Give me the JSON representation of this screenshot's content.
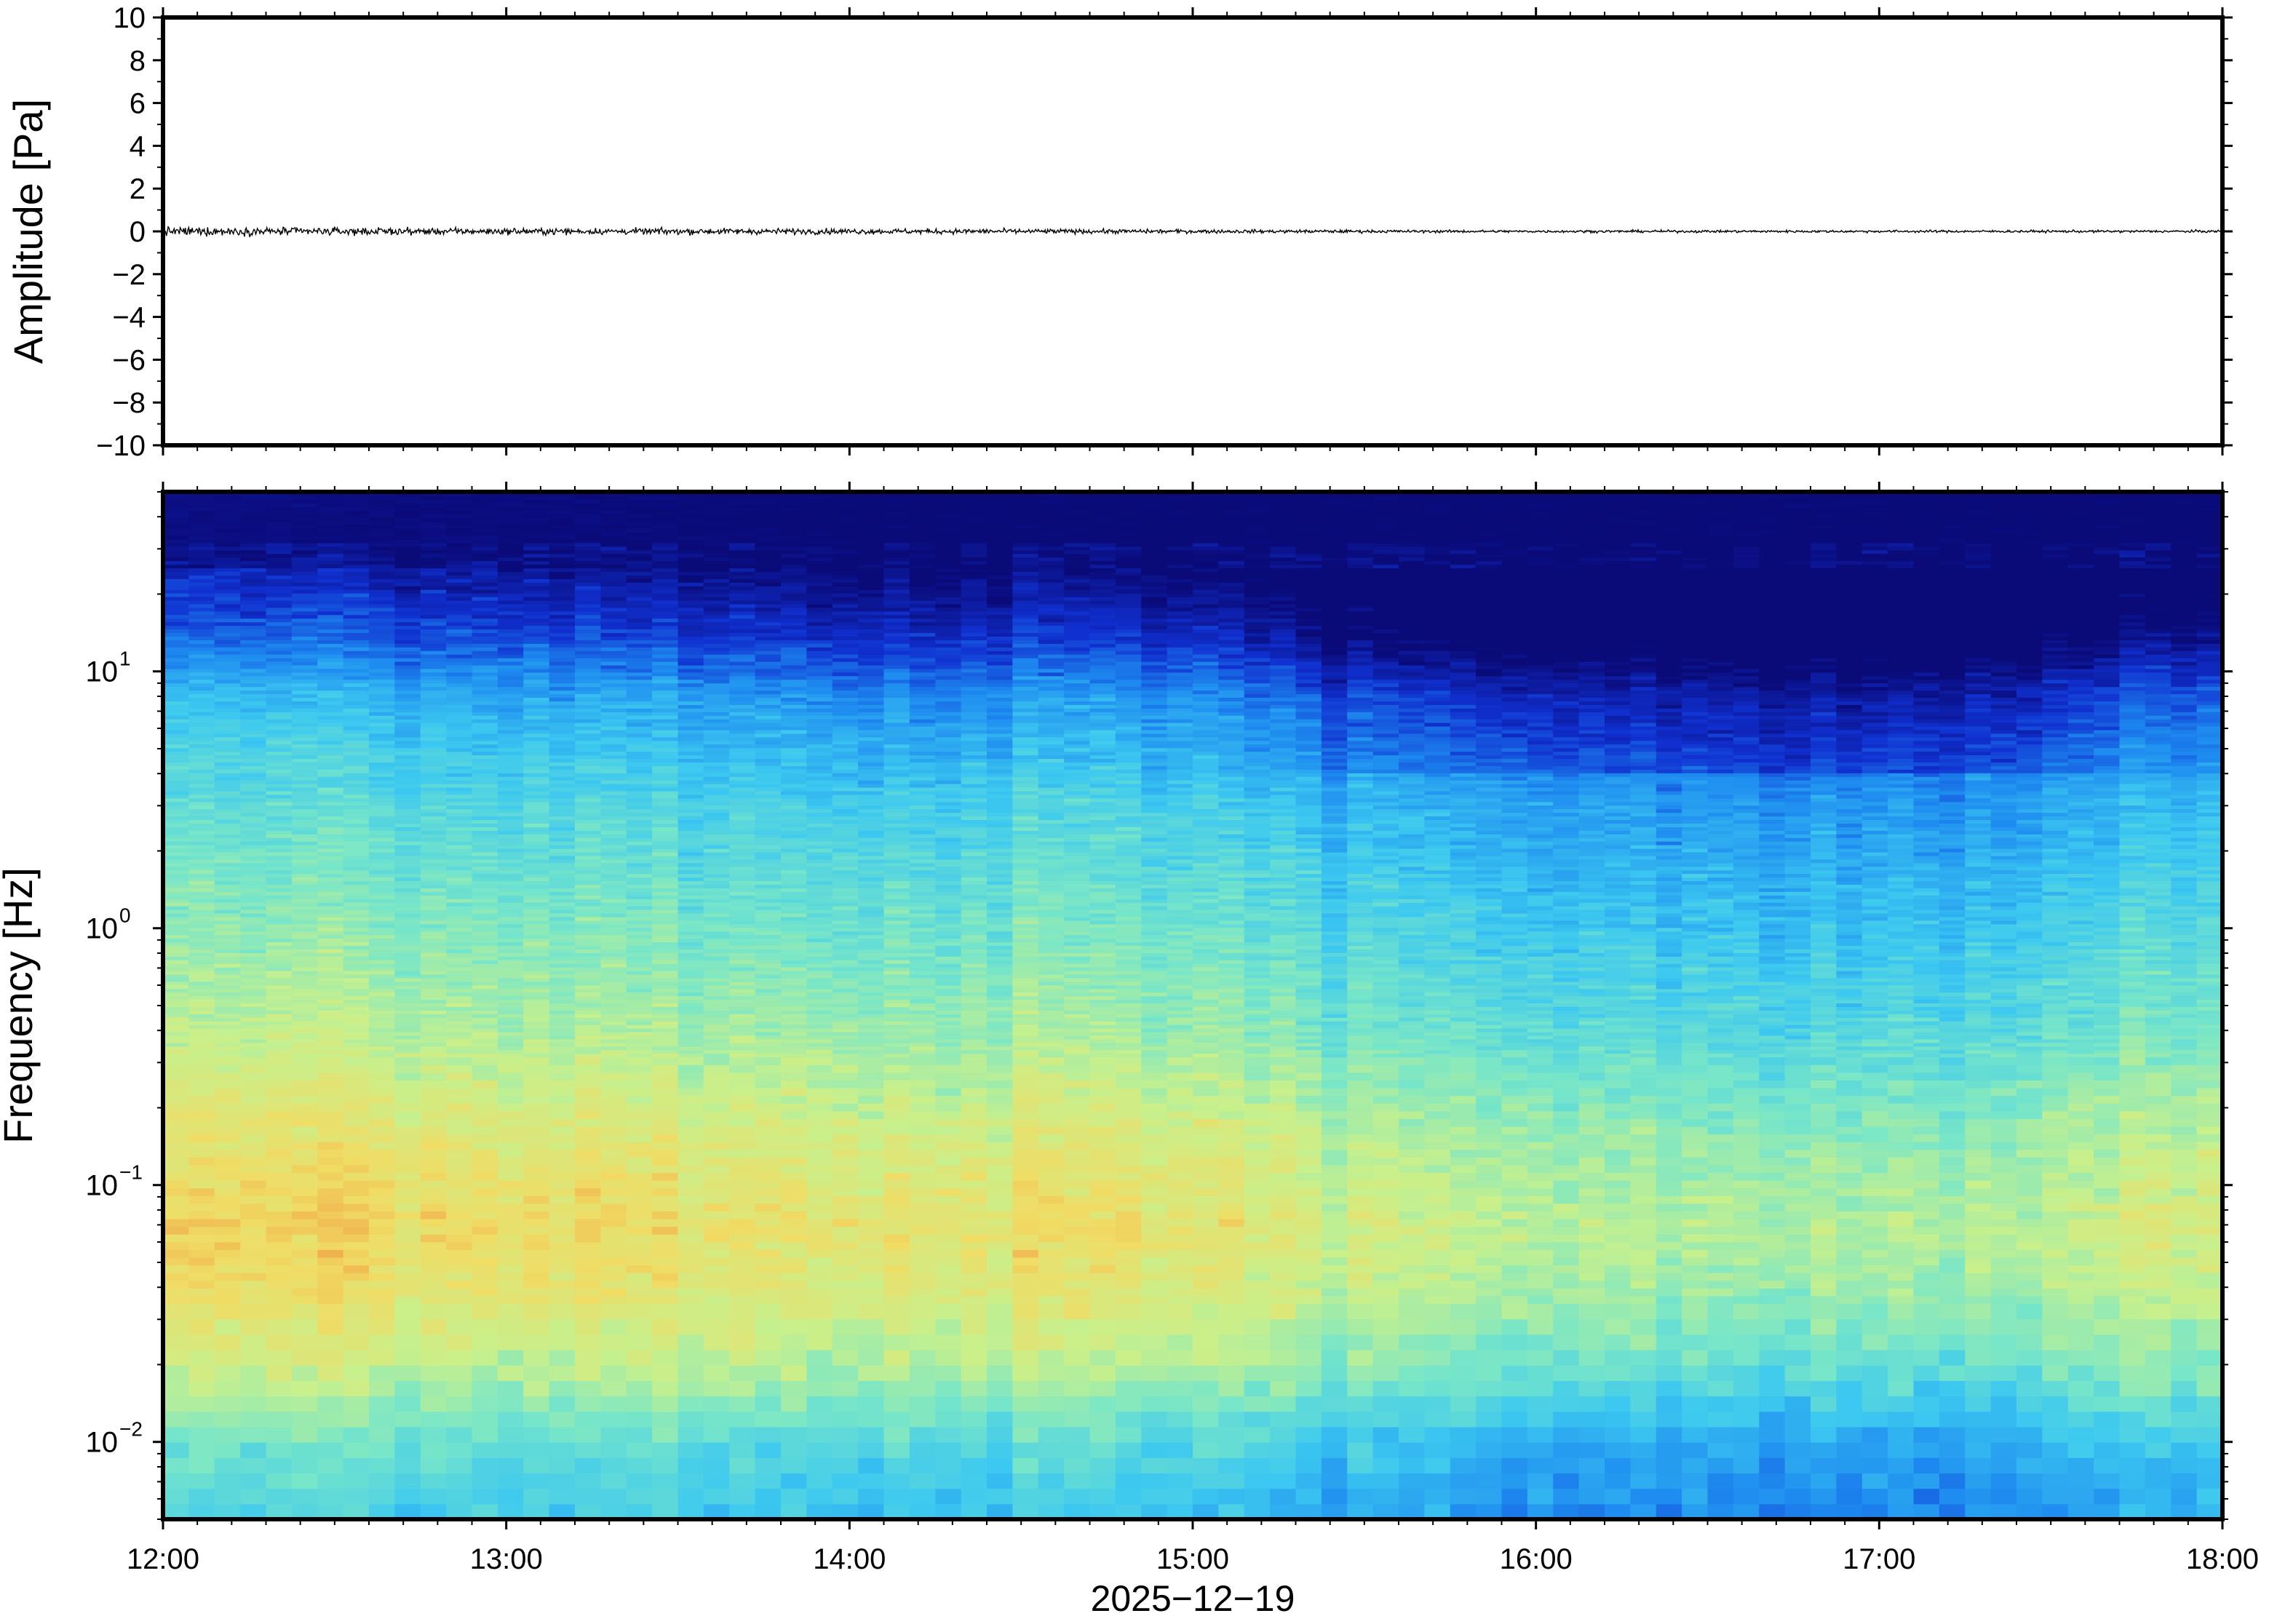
{
  "chart_data": [
    {
      "type": "line",
      "ylabel": "Amplitude [Pa]",
      "ylim": [
        -10,
        10
      ],
      "yticks": [
        -10,
        -8,
        -6,
        -4,
        -2,
        0,
        2,
        4,
        6,
        8,
        10
      ],
      "ytick_labels": [
        "−10",
        "−8",
        "−6",
        "−4",
        "−2",
        "0",
        "2",
        "4",
        "6",
        "8",
        "10"
      ],
      "xlim": [
        "12:00",
        "18:00"
      ],
      "series": [
        {
          "sample_hours": [
            0,
            0.5,
            1,
            1.5,
            2,
            2.5,
            3,
            3.5,
            4,
            4.5,
            5,
            5.5,
            6
          ],
          "envelope_pa": [
            0.35,
            0.3,
            0.25,
            0.25,
            0.22,
            0.2,
            0.15,
            0.12,
            0.1,
            0.1,
            0.1,
            0.1,
            0.1
          ],
          "color": "#000000"
        }
      ],
      "grid": false
    },
    {
      "type": "heatmap",
      "ylabel": "Frequency [Hz]",
      "xlabel": "2025−12−19",
      "yscale": "log",
      "ylim": [
        0.005,
        50
      ],
      "yticks": [
        0.01,
        0.1,
        1,
        10
      ],
      "ytick_labels": [
        {
          "base": "10",
          "exp": "−2"
        },
        {
          "base": "10",
          "exp": "−1"
        },
        {
          "base": "10",
          "exp": "0"
        },
        {
          "base": "10",
          "exp": "1"
        }
      ],
      "xticks": [
        "12:00",
        "13:00",
        "14:00",
        "15:00",
        "16:00",
        "17:00",
        "18:00"
      ],
      "xlim": [
        "12:00",
        "18:00"
      ],
      "colormap": [
        "#0a0a78",
        "#1030d0",
        "#1e8cf0",
        "#3cc8f0",
        "#78e6c8",
        "#c8f08c",
        "#f0dc64",
        "#f09640"
      ],
      "level_scale": "0 = lowest power, 1 = highest power (no colorbar shown)",
      "freq_profile": {
        "freq_hz": [
          0.005,
          0.01,
          0.02,
          0.04,
          0.07,
          0.15,
          0.4,
          1,
          3,
          8,
          14,
          25,
          50
        ],
        "level": [
          0.42,
          0.5,
          0.68,
          0.78,
          0.82,
          0.76,
          0.64,
          0.56,
          0.46,
          0.3,
          0.12,
          0.0,
          0.0
        ]
      },
      "time_adjust": {
        "hours": [
          0,
          0.5,
          1,
          1.5,
          2,
          2.5,
          3,
          3.5,
          4,
          4.5,
          5,
          5.5,
          6
        ],
        "delta": [
          0.08,
          0.05,
          0.04,
          0.03,
          0.0,
          0.0,
          0.0,
          -0.09,
          -0.12,
          -0.13,
          -0.16,
          -0.1,
          -0.04
        ]
      },
      "grid": false
    }
  ]
}
